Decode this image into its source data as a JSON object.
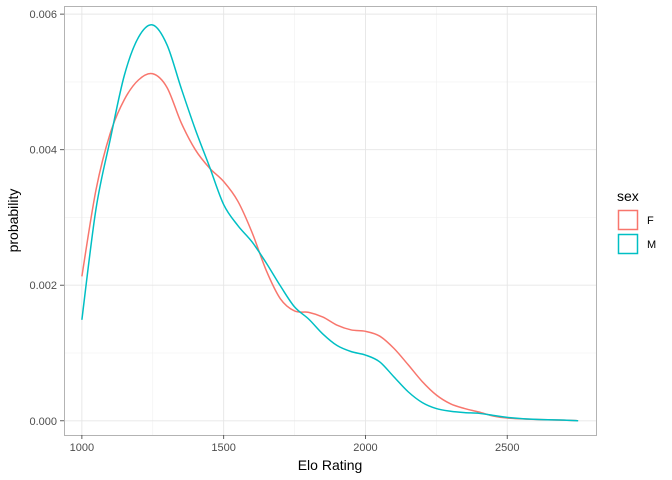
{
  "chart_data": {
    "type": "line",
    "xlabel": "Elo Rating",
    "ylabel": "probability",
    "xlim": [
      937,
      2813
    ],
    "ylim": [
      -0.00021,
      0.00612
    ],
    "xticks": [
      1000,
      1500,
      2000,
      2500
    ],
    "xtick_labels": [
      "1000",
      "1500",
      "2000",
      "2500"
    ],
    "yticks": [
      0,
      0.002,
      0.004,
      0.006
    ],
    "ytick_labels": [
      "0.000",
      "0.002",
      "0.004",
      "0.006"
    ],
    "grid": true,
    "legend": {
      "title": "sex",
      "position": "right"
    },
    "series": [
      {
        "name": "F",
        "color": "#F8766D",
        "x": [
          1000,
          1050,
          1100,
          1150,
          1200,
          1250,
          1300,
          1350,
          1400,
          1450,
          1500,
          1550,
          1600,
          1650,
          1700,
          1750,
          1800,
          1850,
          1900,
          1950,
          2000,
          2050,
          2100,
          2150,
          2200,
          2250,
          2300,
          2350,
          2400,
          2450,
          2500,
          2600,
          2700,
          2750
        ],
        "y": [
          0.00213,
          0.00341,
          0.00424,
          0.00474,
          0.00503,
          0.00512,
          0.00492,
          0.0044,
          0.004,
          0.00373,
          0.00353,
          0.00324,
          0.00278,
          0.00222,
          0.0018,
          0.00162,
          0.0016,
          0.00153,
          0.00141,
          0.00134,
          0.00132,
          0.00125,
          0.00107,
          0.00083,
          0.00058,
          0.00038,
          0.00025,
          0.00018,
          0.00013,
          7e-05,
          4e-05,
          2e-05,
          1e-05,
          0.0
        ]
      },
      {
        "name": "M",
        "color": "#00BFC4",
        "x": [
          1000,
          1050,
          1100,
          1150,
          1200,
          1250,
          1300,
          1350,
          1400,
          1450,
          1500,
          1550,
          1600,
          1650,
          1700,
          1750,
          1800,
          1850,
          1900,
          1950,
          2000,
          2050,
          2100,
          2150,
          2200,
          2250,
          2300,
          2350,
          2400,
          2450,
          2500,
          2600,
          2700,
          2750
        ],
        "y": [
          0.00149,
          0.00313,
          0.00415,
          0.0051,
          0.00566,
          0.00584,
          0.00555,
          0.00491,
          0.0043,
          0.00375,
          0.00319,
          0.00288,
          0.00264,
          0.00233,
          0.00199,
          0.00168,
          0.0015,
          0.00128,
          0.00111,
          0.00102,
          0.00097,
          0.00087,
          0.00065,
          0.00043,
          0.00027,
          0.00018,
          0.00014,
          0.00012,
          0.00011,
          8e-05,
          5e-05,
          2e-05,
          1e-05,
          0.0
        ]
      }
    ]
  }
}
